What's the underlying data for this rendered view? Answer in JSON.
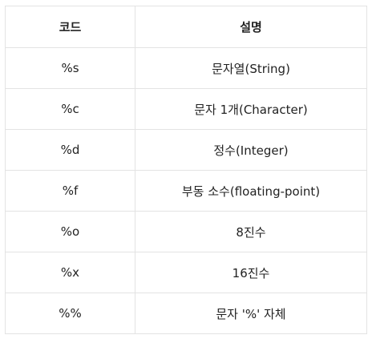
{
  "table": {
    "headers": [
      "코드",
      "설명"
    ],
    "rows": [
      {
        "code": "%s",
        "description": "문자열(String)"
      },
      {
        "code": "%c",
        "description": "문자 1개(Character)"
      },
      {
        "code": "%d",
        "description": "정수(Integer)"
      },
      {
        "code": "%f",
        "description": "부동 소수(floating-point)"
      },
      {
        "code": "%o",
        "description": "8진수"
      },
      {
        "code": "%x",
        "description": "16진수"
      },
      {
        "code": "%%",
        "description": "문자 '%' 자체"
      }
    ]
  }
}
